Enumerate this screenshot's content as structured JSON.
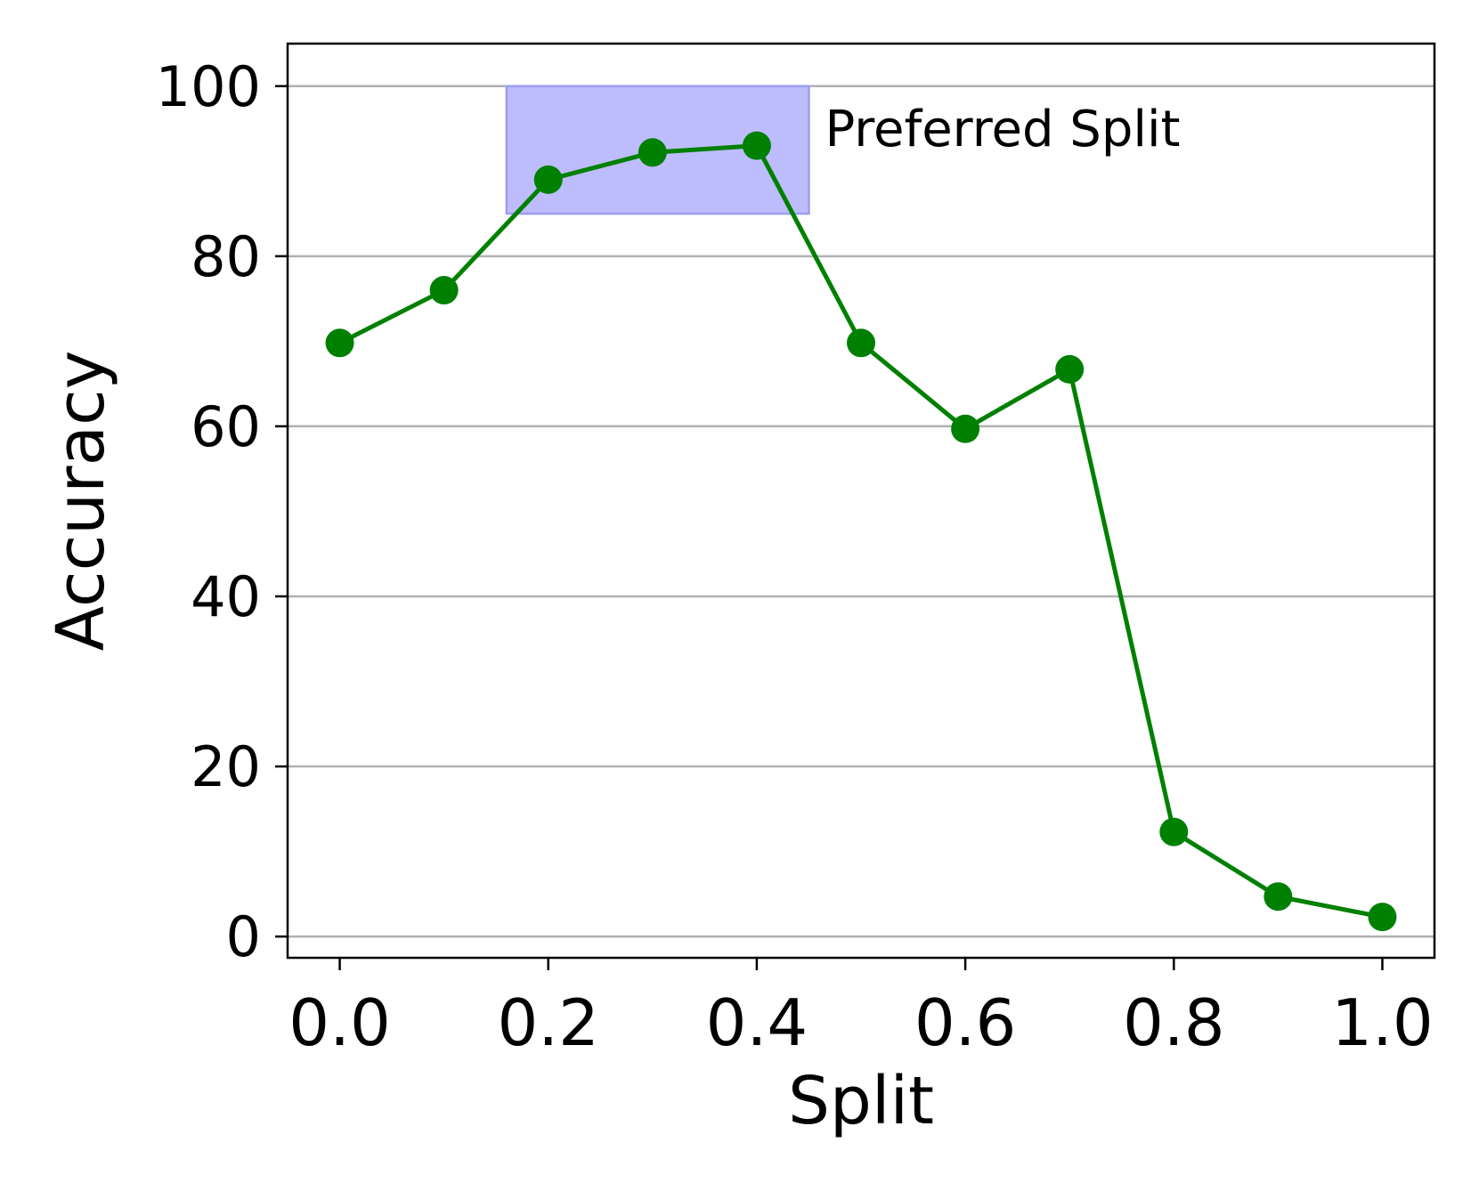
{
  "chart_data": {
    "type": "line",
    "xlabel": "Split",
    "ylabel": "Accuracy",
    "xlim": [
      -0.05,
      1.05
    ],
    "ylim": [
      -2.5,
      105
    ],
    "xticks": [
      0.0,
      0.2,
      0.4,
      0.6,
      0.8,
      1.0
    ],
    "xtick_labels": [
      "0.0",
      "0.2",
      "0.4",
      "0.6",
      "0.8",
      "1.0"
    ],
    "yticks": [
      0,
      20,
      40,
      60,
      80,
      100
    ],
    "ytick_labels": [
      "0",
      "20",
      "40",
      "60",
      "80",
      "100"
    ],
    "grid": "horizontal",
    "series": [
      {
        "color": "#008000",
        "marker": "circle",
        "x": [
          0.0,
          0.1,
          0.2,
          0.3,
          0.4,
          0.5,
          0.6,
          0.7,
          0.8,
          0.9,
          1.0
        ],
        "y": [
          69.8,
          76.0,
          89.0,
          92.2,
          93.0,
          69.8,
          59.7,
          66.7,
          12.3,
          4.7,
          2.3
        ]
      }
    ],
    "highlight": {
      "label": "Preferred Split",
      "x_range": [
        0.16,
        0.45
      ],
      "y_range": [
        85,
        100
      ],
      "color": "#bdbdfd",
      "edge_color": "#9d9df5"
    }
  }
}
